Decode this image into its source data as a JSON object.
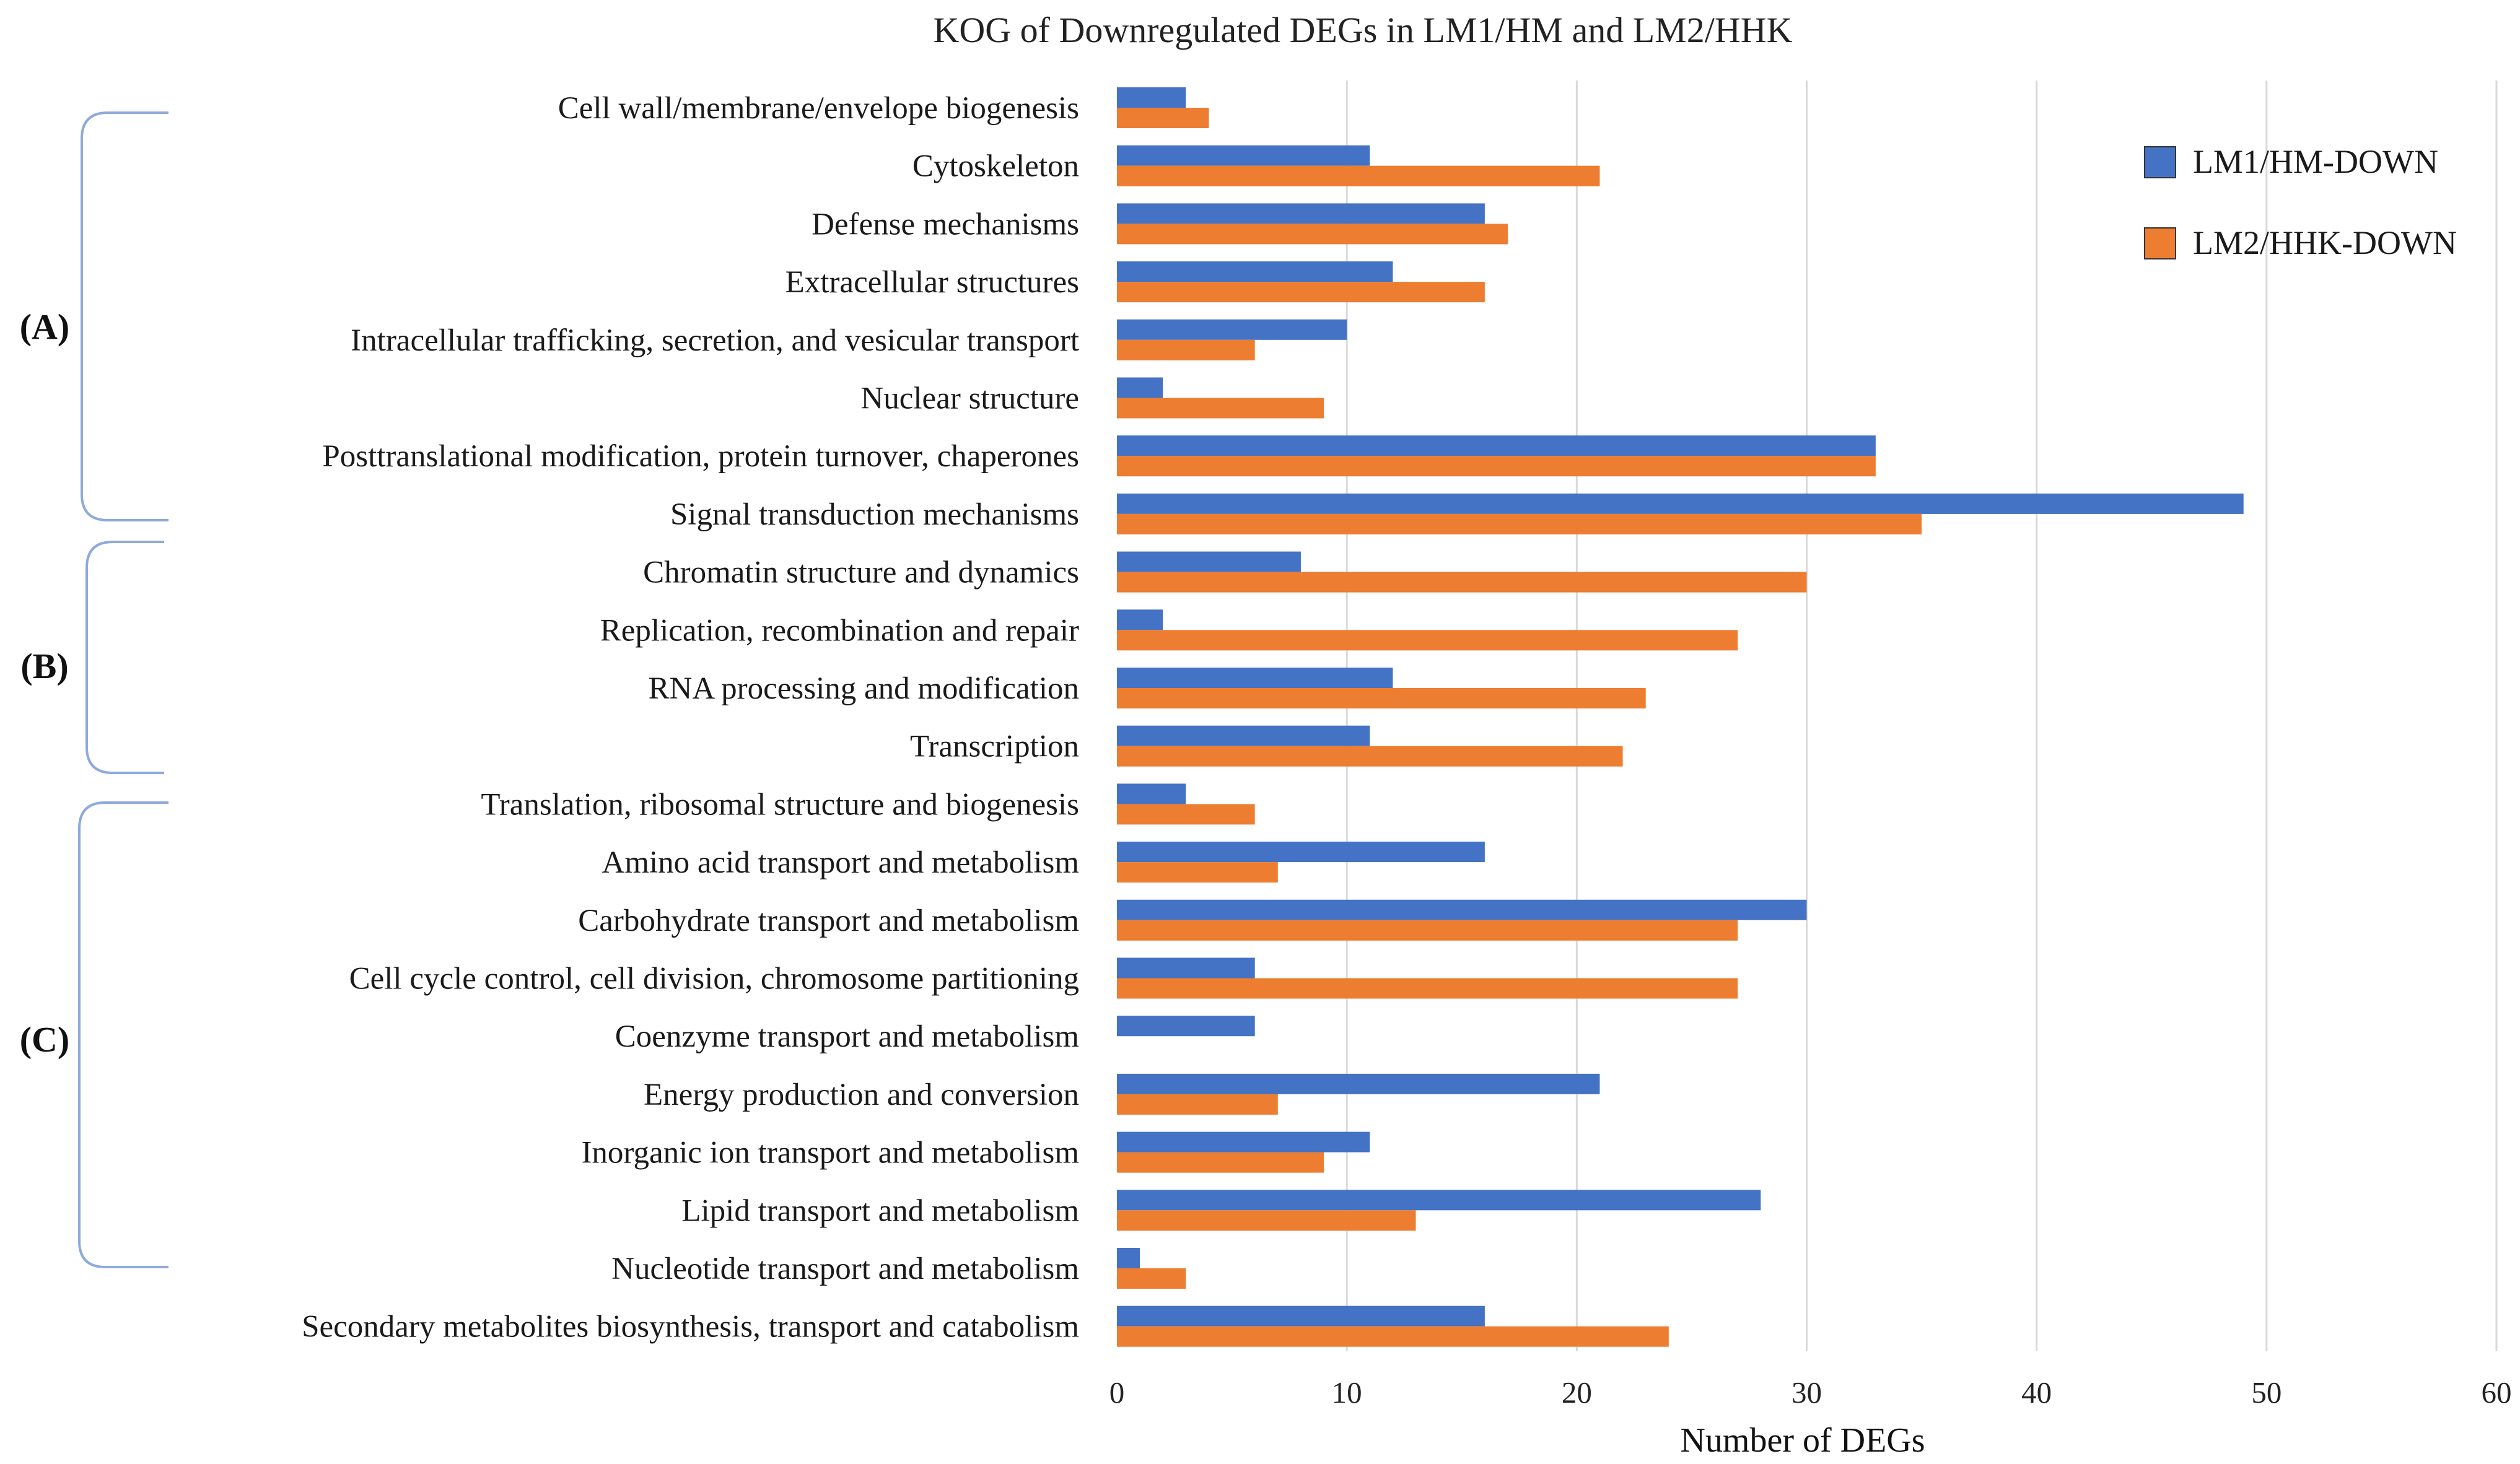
{
  "chart_data": {
    "type": "bar",
    "orientation": "horizontal",
    "title": "KOG of Downregulated DEGs in LM1/HM and LM2/HHK",
    "xlabel": "Number of DEGs",
    "ylabel": "",
    "xlim": [
      0,
      60
    ],
    "xticks": [
      0,
      10,
      20,
      30,
      40,
      50,
      60
    ],
    "grid": true,
    "legend_position": "top-right",
    "categories": [
      "Cell wall/membrane/envelope biogenesis",
      "Cytoskeleton",
      "Defense mechanisms",
      "Extracellular structures",
      "Intracellular trafficking, secretion, and vesicular transport",
      "Nuclear structure",
      "Posttranslational modification, protein turnover, chaperones",
      "Signal transduction mechanisms",
      "Chromatin structure and dynamics",
      "Replication, recombination and repair",
      "RNA processing and modification",
      "Transcription",
      "Translation, ribosomal structure and biogenesis",
      "Amino acid transport and metabolism",
      "Carbohydrate transport and metabolism",
      "Cell cycle control, cell division, chromosome partitioning",
      "Coenzyme transport and metabolism",
      "Energy production and conversion",
      "Inorganic ion transport and metabolism",
      "Lipid transport and metabolism",
      "Nucleotide transport and metabolism",
      "Secondary metabolites biosynthesis, transport and catabolism"
    ],
    "series": [
      {
        "name": "LM1/HM-DOWN",
        "color": "#4472c4",
        "values": [
          3,
          11,
          16,
          12,
          10,
          2,
          33,
          49,
          8,
          2,
          12,
          11,
          3,
          16,
          30,
          6,
          6,
          21,
          11,
          28,
          1,
          16
        ]
      },
      {
        "name": "LM2/HHK-DOWN",
        "color": "#ed7d31",
        "values": [
          4,
          21,
          17,
          16,
          6,
          9,
          33,
          35,
          30,
          27,
          23,
          22,
          6,
          7,
          27,
          27,
          0,
          7,
          9,
          13,
          3,
          24
        ]
      }
    ],
    "groups": [
      {
        "label": "(A)",
        "start_index": 0,
        "end_index": 7
      },
      {
        "label": "(B)",
        "start_index": 8,
        "end_index": 11
      },
      {
        "label": "(C)",
        "start_index": 12,
        "end_index": 20
      }
    ]
  }
}
